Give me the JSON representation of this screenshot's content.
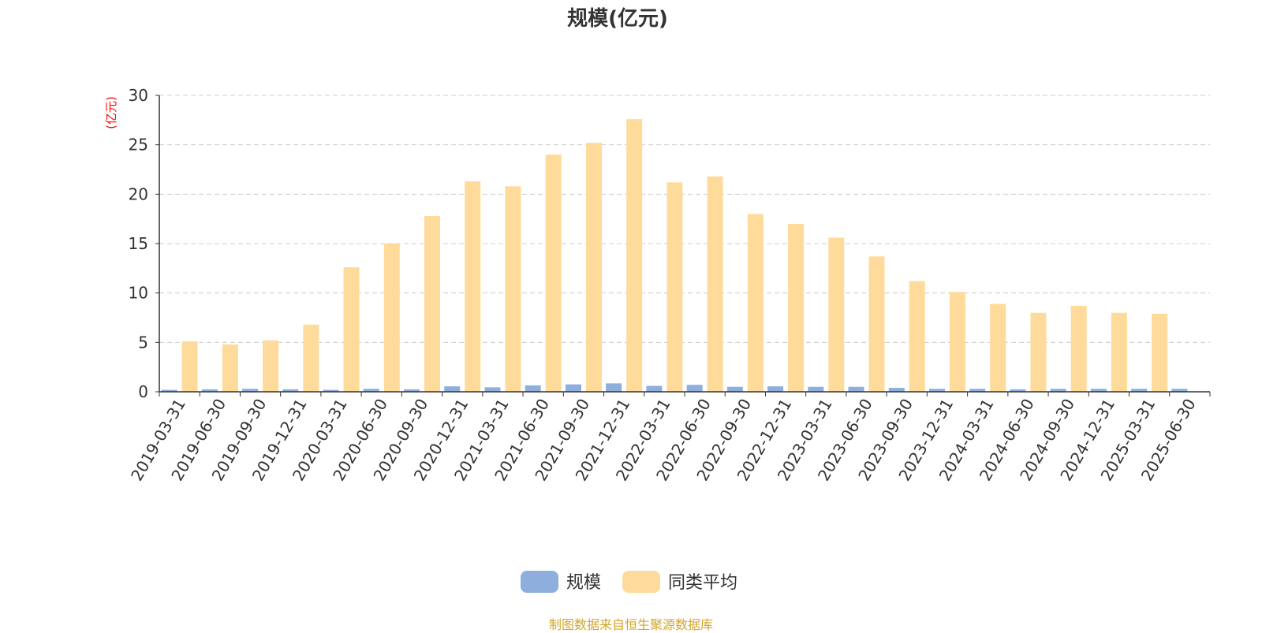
{
  "chart_data": {
    "type": "bar",
    "title": "规模(亿元)",
    "ylabel": "(亿元)",
    "xlabel": "",
    "ylim": [
      0,
      30
    ],
    "yticks": [
      0,
      5,
      10,
      15,
      20,
      25,
      30
    ],
    "grid": true,
    "legend_position": "bottom",
    "categories": [
      "2019-03-31",
      "2019-06-30",
      "2019-09-30",
      "2019-12-31",
      "2020-03-31",
      "2020-06-30",
      "2020-09-30",
      "2020-12-31",
      "2021-03-31",
      "2021-06-30",
      "2021-09-30",
      "2021-12-31",
      "2022-03-31",
      "2022-06-30",
      "2022-09-30",
      "2022-12-31",
      "2023-03-31",
      "2023-06-30",
      "2023-09-30",
      "2023-12-31",
      "2024-03-31",
      "2024-06-30",
      "2024-09-30",
      "2024-12-31",
      "2025-03-31",
      "2025-06-30"
    ],
    "series": [
      {
        "name": "规模",
        "color": "#8eaedd",
        "values": [
          0.2,
          0.25,
          0.3,
          0.25,
          0.2,
          0.3,
          0.25,
          0.55,
          0.45,
          0.65,
          0.75,
          0.85,
          0.6,
          0.7,
          0.5,
          0.55,
          0.5,
          0.5,
          0.4,
          0.3,
          0.3,
          0.25,
          0.3,
          0.3,
          0.3,
          0.3
        ]
      },
      {
        "name": "同类平均",
        "color": "#fedb9b",
        "values": [
          5.1,
          4.8,
          5.2,
          6.8,
          12.6,
          15.0,
          17.8,
          21.3,
          20.8,
          24.0,
          25.2,
          27.6,
          21.2,
          21.8,
          18.0,
          17.0,
          15.6,
          13.7,
          11.2,
          10.1,
          8.9,
          8.0,
          8.7,
          8.0,
          7.9,
          null
        ]
      }
    ]
  },
  "footer": "制图数据来自恒生聚源数据库"
}
